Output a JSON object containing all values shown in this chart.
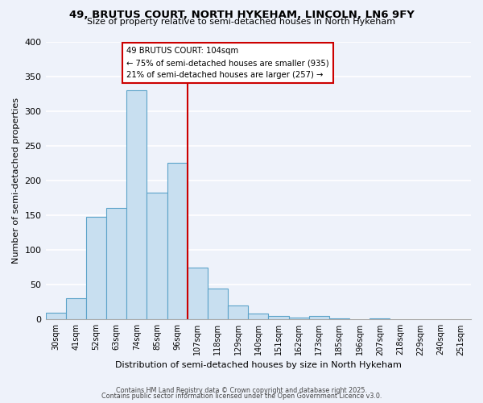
{
  "title": "49, BRUTUS COURT, NORTH HYKEHAM, LINCOLN, LN6 9FY",
  "subtitle": "Size of property relative to semi-detached houses in North Hykeham",
  "xlabel": "Distribution of semi-detached houses by size in North Hykeham",
  "ylabel": "Number of semi-detached properties",
  "bins": [
    "30sqm",
    "41sqm",
    "52sqm",
    "63sqm",
    "74sqm",
    "85sqm",
    "96sqm",
    "107sqm",
    "118sqm",
    "129sqm",
    "140sqm",
    "151sqm",
    "162sqm",
    "173sqm",
    "185sqm",
    "196sqm",
    "207sqm",
    "218sqm",
    "229sqm",
    "240sqm",
    "251sqm"
  ],
  "values": [
    10,
    30,
    148,
    160,
    330,
    183,
    225,
    75,
    45,
    20,
    8,
    5,
    3,
    5,
    2,
    0,
    1,
    0,
    0,
    0,
    0
  ],
  "bar_color": "#c8dff0",
  "bar_edge_color": "#5ba3c9",
  "vline_x": 6.5,
  "vline_color": "#cc0000",
  "annotation_title": "49 BRUTUS COURT: 104sqm",
  "annotation_line1": "← 75% of semi-detached houses are smaller (935)",
  "annotation_line2": "21% of semi-detached houses are larger (257) →",
  "annotation_box_color": "white",
  "annotation_box_edge": "#cc0000",
  "ylim": [
    0,
    400
  ],
  "yticks": [
    0,
    50,
    100,
    150,
    200,
    250,
    300,
    350,
    400
  ],
  "footer1": "Contains HM Land Registry data © Crown copyright and database right 2025.",
  "footer2": "Contains public sector information licensed under the Open Government Licence v3.0.",
  "bg_color": "#eef2fa",
  "grid_color": "white"
}
